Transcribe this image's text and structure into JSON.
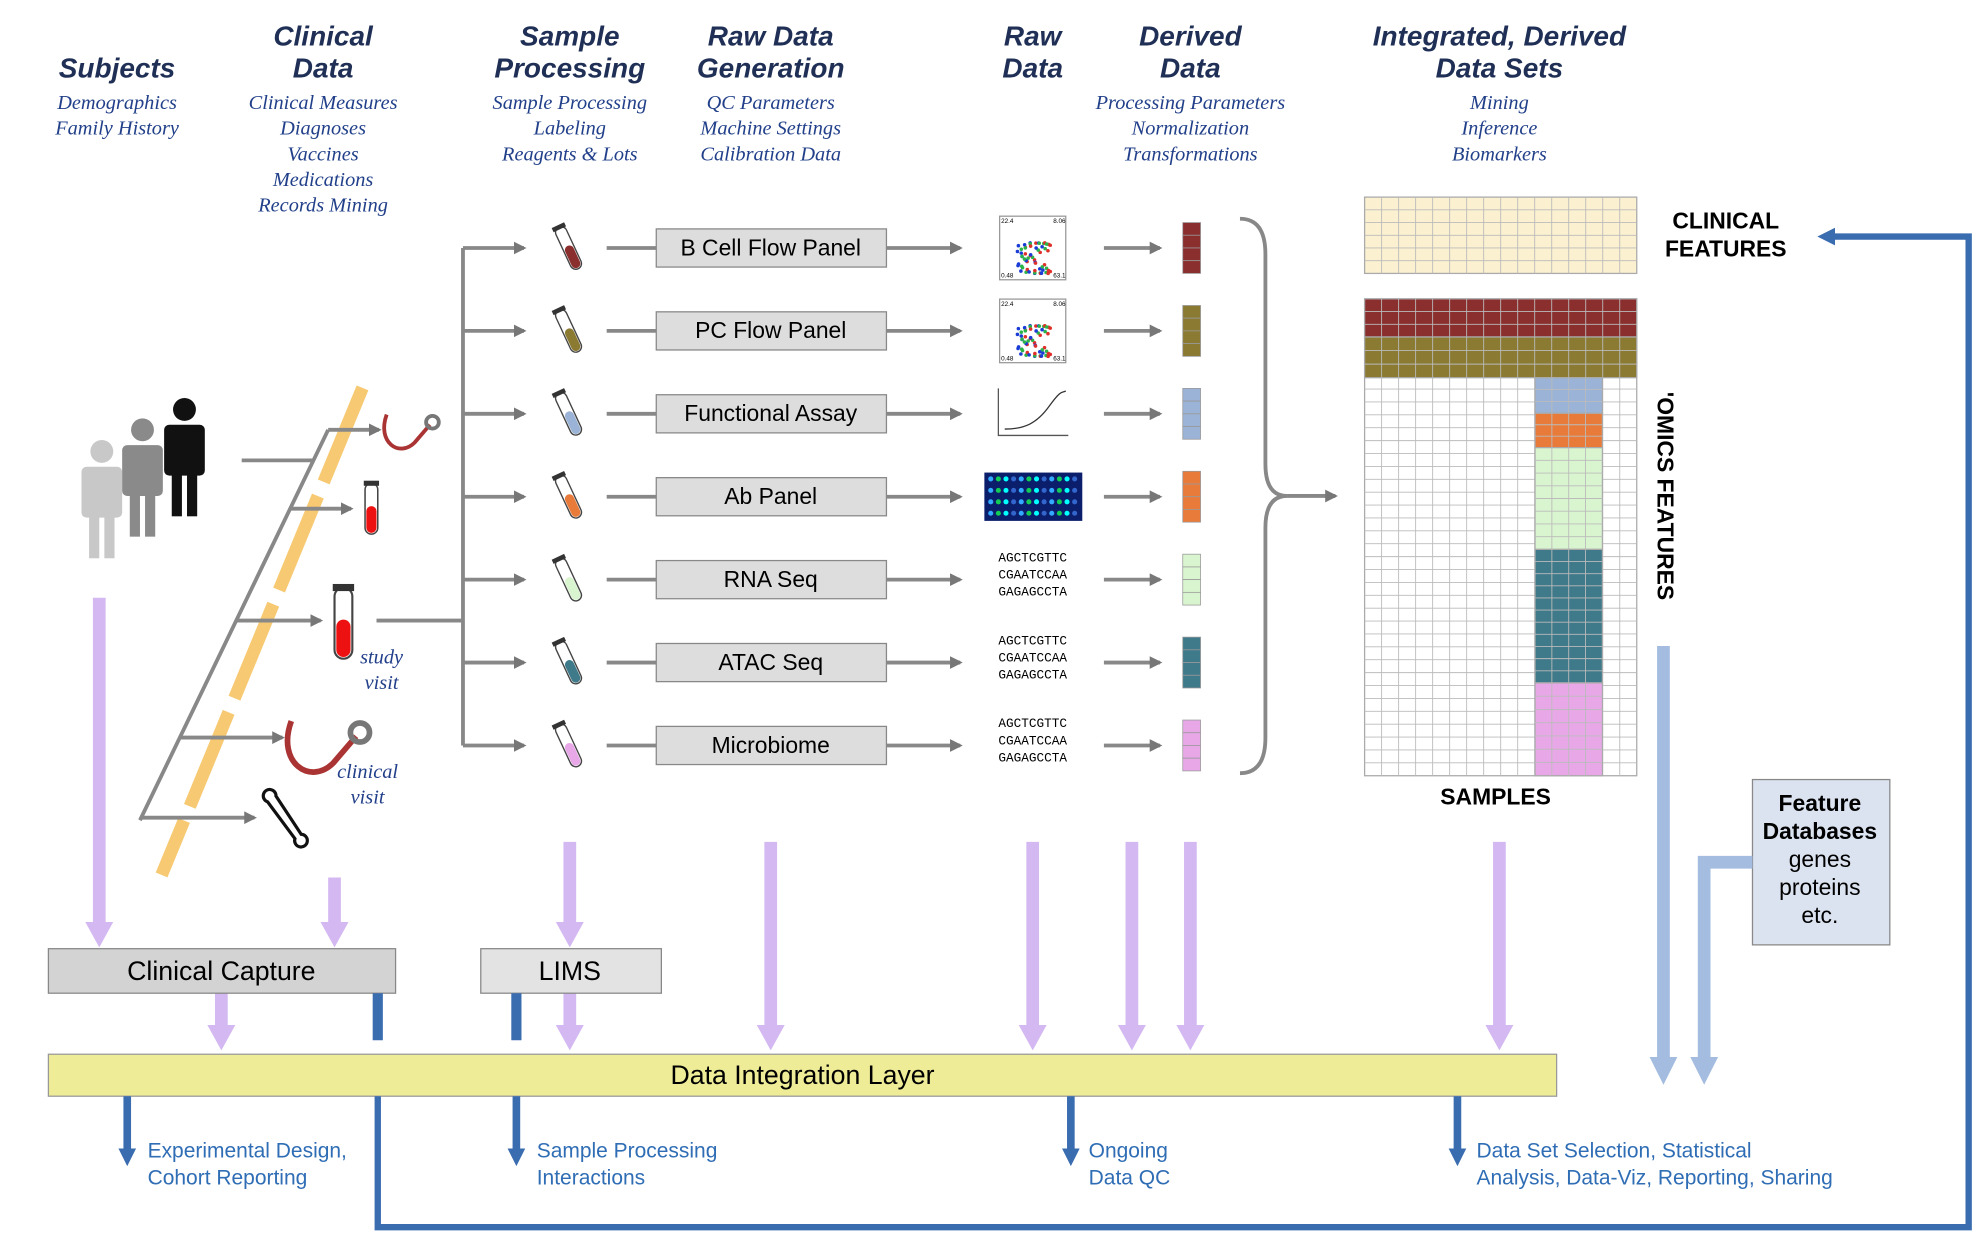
{
  "columns": [
    {
      "title": [
        "Subjects"
      ],
      "items": [
        "Demographics",
        "Family History"
      ]
    },
    {
      "title": [
        "Clinical",
        "Data"
      ],
      "items": [
        "Clinical Measures",
        "Diagnoses",
        "Vaccines",
        "Medications",
        "Records Mining"
      ]
    },
    {
      "title": [
        "Sample",
        "Processing"
      ],
      "items": [
        "Sample Processing",
        "Labeling",
        "Reagents & Lots"
      ]
    },
    {
      "title": [
        "Raw Data",
        "Generation"
      ],
      "items": [
        "QC Parameters",
        "Machine Settings",
        "Calibration Data"
      ]
    },
    {
      "title": [
        "Raw",
        "Data"
      ],
      "items": []
    },
    {
      "title": [
        "Derived",
        "Data"
      ],
      "items": [
        "Processing Parameters",
        "Normalization",
        "Transformations"
      ]
    },
    {
      "title": [
        "Integrated, Derived",
        "Data Sets"
      ],
      "items": [
        "Mining",
        "Inference",
        "Biomarkers"
      ]
    }
  ],
  "panels": [
    {
      "label": "B Cell Flow Panel",
      "color": "#8b2e2e"
    },
    {
      "label": "PC Flow Panel",
      "color": "#8a7a32"
    },
    {
      "label": "Functional Assay",
      "color": "#9ab3d6"
    },
    {
      "label": "Ab Panel",
      "color": "#e97b3a"
    },
    {
      "label": "RNA Seq",
      "color": "#d9f5d0"
    },
    {
      "label": "ATAC Seq",
      "color": "#3f7a8a"
    },
    {
      "label": "Microbiome",
      "color": "#e8a8e8"
    }
  ],
  "flow_plot_labels": [
    "22.4",
    "8.06",
    "0.48",
    "63.1"
  ],
  "sequence": [
    "AGCTCGTTC",
    "CGAATCCAA",
    "GAGAGCCTA"
  ],
  "visits": {
    "study": [
      "study",
      "visit"
    ],
    "clinical": [
      "clinical",
      "visit"
    ]
  },
  "matrix": {
    "clinical": [
      "CLINICAL",
      "FEATURES"
    ],
    "omics": "'OMICS FEATURES",
    "samples": "SAMPLES"
  },
  "feature_db": {
    "title": [
      "Feature",
      "Databases"
    ],
    "items": [
      "genes",
      "proteins",
      "etc."
    ]
  },
  "systems": {
    "clinical_capture": "Clinical Capture",
    "lims": "LIMS",
    "integration": "Data Integration Layer"
  },
  "outputs": [
    [
      "Experimental Design,",
      "Cohort Reporting"
    ],
    [
      "Sample Processing",
      "Interactions"
    ],
    [
      "Ongoing",
      "Data QC"
    ],
    [
      "Data Set Selection, Statistical",
      "Analysis, Data-Viz, Reporting, Sharing"
    ]
  ]
}
